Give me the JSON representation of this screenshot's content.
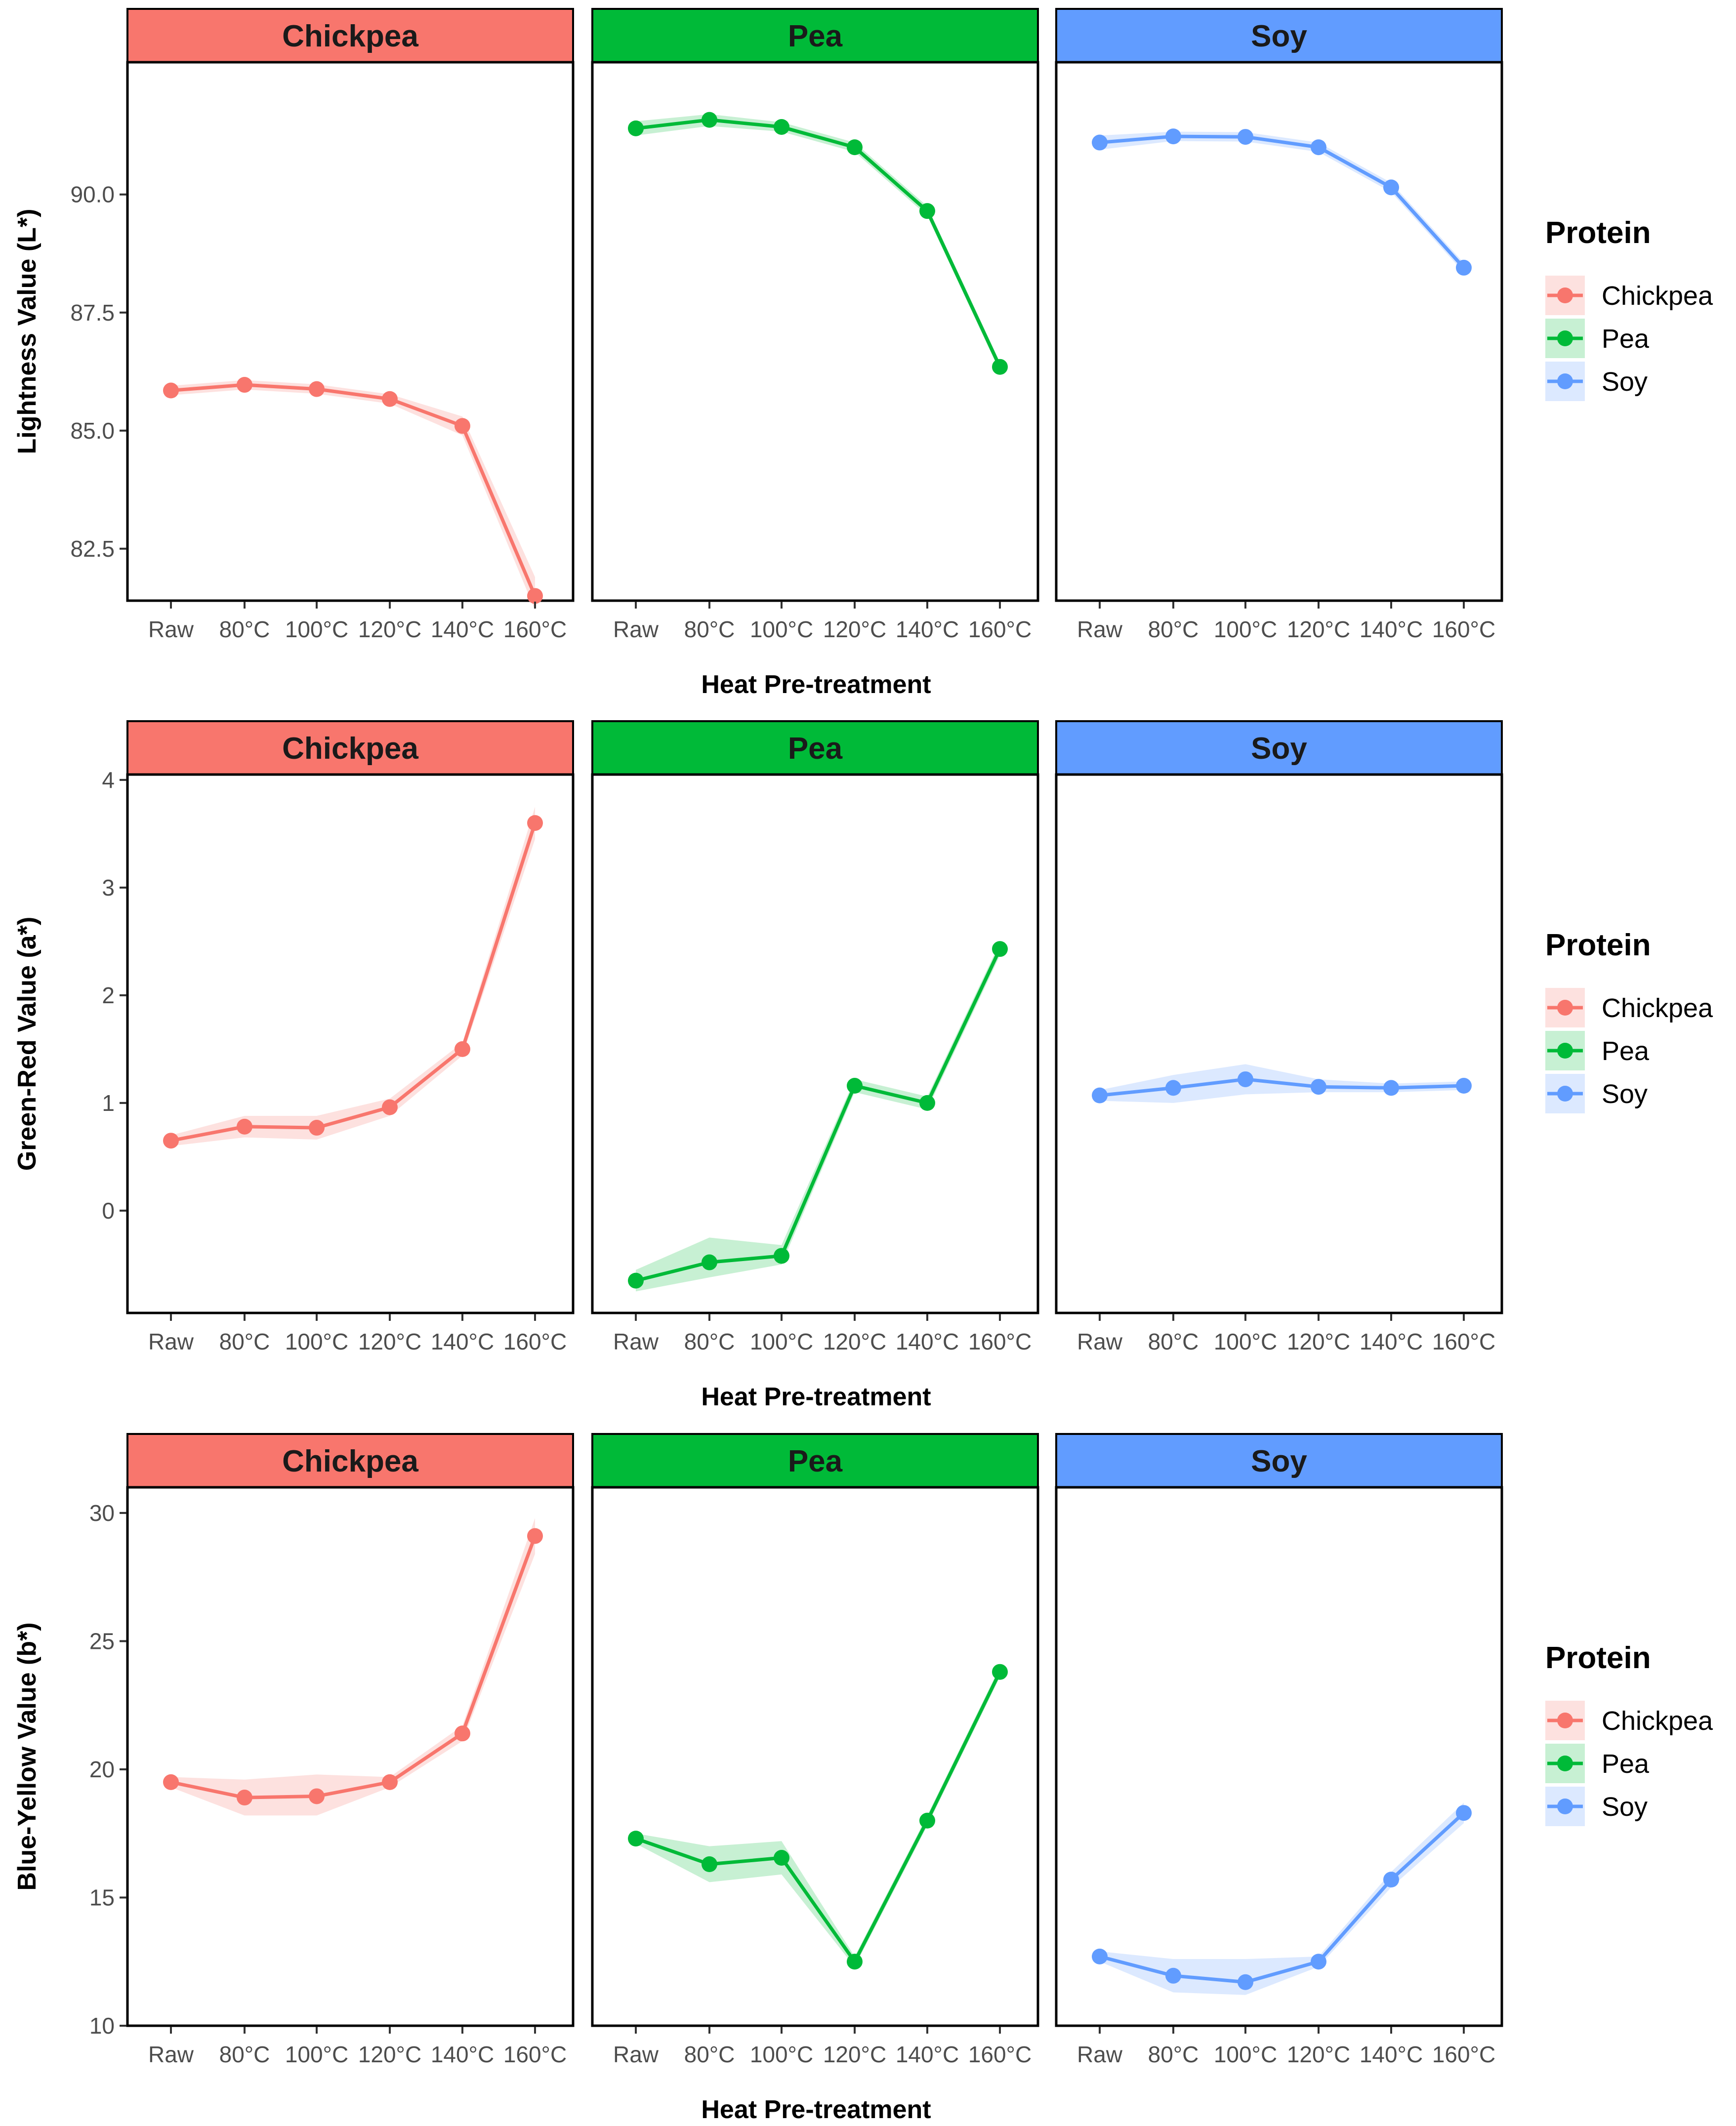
{
  "chart_data": [
    {
      "type": "line",
      "ylabel": "Lightness Value (L*)",
      "xlabel": "Heat Pre-treatment",
      "categories": [
        "Raw",
        "80°C",
        "100°C",
        "120°C",
        "140°C",
        "160°C"
      ],
      "ylim": [
        81.4,
        92.8
      ],
      "yticks": [
        82.5,
        85.0,
        87.5,
        90.0
      ],
      "ytick_labels": [
        "82.5",
        "85.0",
        "87.5",
        "90.0"
      ],
      "series": [
        {
          "name": "Chickpea",
          "values": [
            85.85,
            85.97,
            85.88,
            85.67,
            85.1,
            81.5
          ],
          "lower": [
            85.75,
            85.87,
            85.78,
            85.57,
            84.9,
            81.2
          ],
          "upper": [
            85.95,
            86.07,
            85.98,
            85.77,
            85.3,
            81.9
          ]
        },
        {
          "name": "Pea",
          "values": [
            91.4,
            91.58,
            91.43,
            91.0,
            89.65,
            86.35
          ],
          "lower": [
            91.25,
            91.45,
            91.33,
            90.9,
            89.55,
            86.25
          ],
          "upper": [
            91.55,
            91.7,
            91.53,
            91.1,
            89.75,
            86.45
          ]
        },
        {
          "name": "Soy",
          "values": [
            91.1,
            91.23,
            91.22,
            91.0,
            90.15,
            88.45
          ],
          "lower": [
            90.95,
            91.13,
            91.12,
            90.9,
            90.05,
            88.35
          ],
          "upper": [
            91.25,
            91.33,
            91.32,
            91.1,
            90.25,
            88.55
          ]
        }
      ]
    },
    {
      "type": "line",
      "ylabel": "Green-Red Value (a*)",
      "xlabel": "Heat Pre-treatment",
      "categories": [
        "Raw",
        "80°C",
        "100°C",
        "120°C",
        "140°C",
        "160°C"
      ],
      "ylim": [
        -0.95,
        4.05
      ],
      "yticks": [
        0,
        1,
        2,
        3,
        4
      ],
      "ytick_labels": [
        "0",
        "1",
        "2",
        "3",
        "4"
      ],
      "series": [
        {
          "name": "Chickpea",
          "values": [
            0.65,
            0.78,
            0.77,
            0.96,
            1.5,
            3.6
          ],
          "lower": [
            0.6,
            0.68,
            0.66,
            0.88,
            1.44,
            3.45
          ],
          "upper": [
            0.7,
            0.88,
            0.88,
            1.04,
            1.56,
            3.75
          ]
        },
        {
          "name": "Pea",
          "values": [
            -0.65,
            -0.48,
            -0.42,
            1.16,
            1.0,
            2.43
          ],
          "lower": [
            -0.75,
            -0.62,
            -0.5,
            1.1,
            0.94,
            2.37
          ],
          "upper": [
            -0.55,
            -0.25,
            -0.32,
            1.22,
            1.06,
            2.49
          ]
        },
        {
          "name": "Soy",
          "values": [
            1.07,
            1.14,
            1.22,
            1.15,
            1.14,
            1.16
          ],
          "lower": [
            1.02,
            1.0,
            1.08,
            1.1,
            1.1,
            1.12
          ],
          "upper": [
            1.12,
            1.26,
            1.36,
            1.22,
            1.18,
            1.2
          ]
        }
      ]
    },
    {
      "type": "line",
      "ylabel": "Blue-Yellow Value (b*)",
      "xlabel": "Heat Pre-treatment",
      "categories": [
        "Raw",
        "80°C",
        "100°C",
        "120°C",
        "140°C",
        "160°C"
      ],
      "ylim": [
        10,
        31
      ],
      "yticks": [
        10,
        15,
        20,
        25,
        30
      ],
      "ytick_labels": [
        "10",
        "15",
        "20",
        "25",
        "30"
      ],
      "series": [
        {
          "name": "Chickpea",
          "values": [
            19.5,
            18.9,
            18.95,
            19.5,
            21.4,
            29.1
          ],
          "lower": [
            19.3,
            18.2,
            18.2,
            19.3,
            21.1,
            28.4
          ],
          "upper": [
            19.7,
            19.6,
            19.8,
            19.7,
            21.7,
            29.8
          ]
        },
        {
          "name": "Pea",
          "values": [
            17.3,
            16.3,
            16.55,
            12.5,
            18.0,
            23.8
          ],
          "lower": [
            17.1,
            15.6,
            15.9,
            12.3,
            17.8,
            23.6
          ],
          "upper": [
            17.5,
            17.0,
            17.2,
            12.7,
            18.2,
            24.0
          ]
        },
        {
          "name": "Soy",
          "values": [
            12.7,
            11.95,
            11.7,
            12.5,
            15.7,
            18.3
          ],
          "lower": [
            12.5,
            11.3,
            11.2,
            12.3,
            15.4,
            17.9
          ],
          "upper": [
            12.9,
            12.6,
            12.6,
            12.7,
            16.0,
            18.7
          ]
        }
      ]
    }
  ],
  "facets": [
    "Chickpea",
    "Pea",
    "Soy"
  ],
  "legend": {
    "title": "Protein",
    "labels": [
      "Chickpea",
      "Pea",
      "Soy"
    ]
  },
  "colors": {
    "Chickpea": "#F8766D",
    "Pea": "#00BA38",
    "Soy": "#619CFF"
  }
}
